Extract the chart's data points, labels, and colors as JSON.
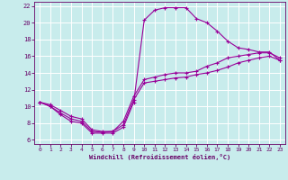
{
  "xlabel": "Windchill (Refroidissement éolien,°C)",
  "line_color": "#990099",
  "bg_color": "#c8ecec",
  "grid_color": "#ffffff",
  "xlim": [
    -0.5,
    23.5
  ],
  "ylim": [
    5.5,
    22.5
  ],
  "xticks": [
    0,
    1,
    2,
    3,
    4,
    5,
    6,
    7,
    8,
    9,
    10,
    11,
    12,
    13,
    14,
    15,
    16,
    17,
    18,
    19,
    20,
    21,
    22,
    23
  ],
  "yticks": [
    6,
    8,
    10,
    12,
    14,
    16,
    18,
    20,
    22
  ],
  "curve1_x": [
    0,
    1,
    2,
    3,
    4,
    5,
    6,
    7,
    8,
    9,
    10,
    11,
    12,
    13,
    14,
    15,
    16,
    17,
    18,
    19,
    20,
    21,
    22,
    23
  ],
  "curve1_y": [
    10.5,
    10.0,
    9.0,
    8.2,
    8.0,
    6.8,
    6.8,
    6.8,
    7.5,
    10.5,
    20.3,
    21.5,
    21.8,
    21.8,
    21.8,
    20.5,
    20.0,
    19.0,
    17.8,
    17.0,
    16.8,
    16.5,
    16.5,
    15.5
  ],
  "curve2_x": [
    0,
    1,
    2,
    3,
    4,
    5,
    6,
    7,
    8,
    9,
    10,
    11,
    12,
    13,
    14,
    15,
    16,
    17,
    18,
    19,
    20,
    21,
    22,
    23
  ],
  "curve2_y": [
    10.5,
    10.0,
    9.2,
    8.5,
    8.2,
    7.0,
    6.9,
    7.0,
    7.8,
    10.8,
    12.8,
    13.0,
    13.2,
    13.4,
    13.5,
    13.8,
    14.0,
    14.3,
    14.7,
    15.2,
    15.5,
    15.8,
    16.0,
    15.5
  ],
  "curve3_x": [
    0,
    1,
    2,
    3,
    4,
    5,
    6,
    7,
    8,
    9,
    10,
    11,
    12,
    13,
    14,
    15,
    16,
    17,
    18,
    19,
    20,
    21,
    22,
    23
  ],
  "curve3_y": [
    10.5,
    10.2,
    9.5,
    8.8,
    8.5,
    7.2,
    7.0,
    7.0,
    8.2,
    11.2,
    13.2,
    13.5,
    13.8,
    14.0,
    14.0,
    14.2,
    14.8,
    15.2,
    15.8,
    16.0,
    16.2,
    16.4,
    16.4,
    15.8
  ]
}
